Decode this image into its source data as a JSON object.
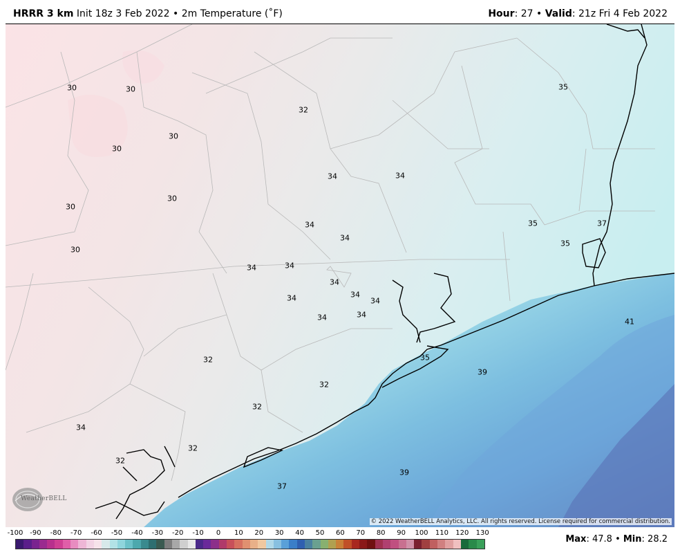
{
  "header": {
    "model": "HRRR 3 km",
    "init_text": "Init 18z 3 Feb 2022",
    "sep": "•",
    "field_text": "2m Temperature (˚F)",
    "hour_label": "Hour",
    "hour_value": ": 27",
    "valid_label": "Valid",
    "valid_value": ": 21z Fri 4 Feb 2022"
  },
  "map": {
    "labels": [
      {
        "text": "30",
        "id": "t1"
      },
      {
        "text": "30",
        "id": "t2"
      },
      {
        "text": "30",
        "id": "t3"
      },
      {
        "text": "30",
        "id": "t4"
      },
      {
        "text": "30",
        "id": "t5"
      },
      {
        "text": "30",
        "id": "t6"
      },
      {
        "text": "30",
        "id": "t7"
      },
      {
        "text": "32",
        "id": "t8"
      },
      {
        "text": "34",
        "id": "t9"
      },
      {
        "text": "34",
        "id": "t10"
      },
      {
        "text": "34",
        "id": "t11"
      },
      {
        "text": "34",
        "id": "t12"
      },
      {
        "text": "34",
        "id": "t13"
      },
      {
        "text": "34",
        "id": "t14"
      },
      {
        "text": "34",
        "id": "t15"
      },
      {
        "text": "34",
        "id": "t16"
      },
      {
        "text": "34",
        "id": "t17"
      },
      {
        "text": "34",
        "id": "t18"
      },
      {
        "text": "34",
        "id": "t19"
      },
      {
        "text": "35",
        "id": "t20"
      },
      {
        "text": "35",
        "id": "t21"
      },
      {
        "text": "35",
        "id": "t22"
      },
      {
        "text": "37",
        "id": "t23"
      },
      {
        "text": "41",
        "id": "t24"
      },
      {
        "text": "35",
        "id": "t25"
      },
      {
        "text": "39",
        "id": "t26"
      },
      {
        "text": "32",
        "id": "t27"
      },
      {
        "text": "32",
        "id": "t28"
      },
      {
        "text": "32",
        "id": "t29"
      },
      {
        "text": "34",
        "id": "t30"
      },
      {
        "text": "32",
        "id": "t31"
      },
      {
        "text": "32",
        "id": "t32"
      },
      {
        "text": "39",
        "id": "t33"
      },
      {
        "text": "37",
        "id": "t34"
      }
    ],
    "copyright": "© 2022 WeatherBELL Analytics, LLC. All rights reserved. License required for commercial distribution.",
    "logo_text": "WeatherBELL"
  },
  "colorbar": {
    "ticks": [
      "-100",
      "-90",
      "-80",
      "-70",
      "-60",
      "-50",
      "-40",
      "-30",
      "-20",
      "-10",
      "0",
      "10",
      "20",
      "30",
      "40",
      "50",
      "60",
      "70",
      "80",
      "90",
      "100",
      "110",
      "120",
      "130"
    ]
  },
  "stats": {
    "max_label": "Max",
    "max_value": ": 47.8",
    "sep": "•",
    "min_label": "Min",
    "min_value": ": 28.2"
  },
  "colors": {
    "land_cold": "#fbe6e8",
    "land_mid": "#ebebeb",
    "land_warm": "#d3eef0",
    "ocean_near": "#a9e4ea",
    "ocean_mid": "#72b6de",
    "ocean_far": "#5a7fbf"
  }
}
